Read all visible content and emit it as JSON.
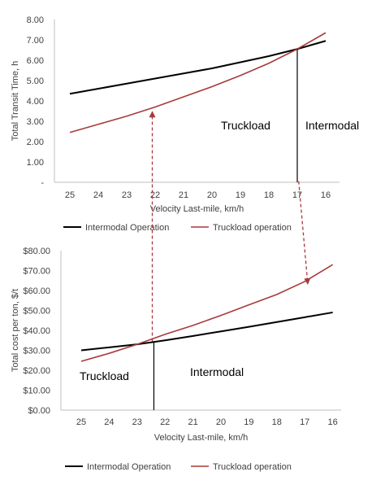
{
  "colors": {
    "intermodal": "#000000",
    "truckload": "#a83a3a",
    "axis": "#bfbfbf",
    "text": "#404040"
  },
  "chart_data": [
    {
      "type": "line",
      "title": "",
      "xlabel": "Velocity Last-mile, km/h",
      "ylabel": "Total Transit Time, h",
      "categories": [
        "25",
        "24",
        "23",
        "22",
        "21",
        "20",
        "19",
        "18",
        "17",
        "16"
      ],
      "y_tick_labels": [
        "-",
        "1.00",
        "2.00",
        "3.00",
        "4.00",
        "5.00",
        "6.00",
        "7.00",
        "8.00"
      ],
      "ylim": [
        0,
        8
      ],
      "grid": false,
      "legend_position": "bottom",
      "series": [
        {
          "name": "Intermodal Operation",
          "color": "#000000",
          "values": [
            4.35,
            4.6,
            4.85,
            5.1,
            5.35,
            5.6,
            5.9,
            6.2,
            6.55,
            6.95
          ]
        },
        {
          "name": "Truckload operation",
          "color": "#a83a3a",
          "values": [
            2.45,
            2.85,
            3.25,
            3.7,
            4.2,
            4.7,
            5.25,
            5.85,
            6.55,
            7.35
          ]
        }
      ],
      "annotations": {
        "truckload_label": "Truckload",
        "intermodal_label": "Intermodal",
        "crossover_x": 17,
        "arrow_up_x": 22.1
      }
    },
    {
      "type": "line",
      "title": "",
      "xlabel": "Velocity Last-mile, km/h",
      "ylabel": "Total cost per ton, $/t",
      "categories": [
        "25",
        "24",
        "23",
        "22",
        "21",
        "20",
        "19",
        "18",
        "17",
        "16"
      ],
      "y_tick_labels": [
        "$0.00",
        "$10.00",
        "$20.00",
        "$30.00",
        "$40.00",
        "$50.00",
        "$60.00",
        "$70.00",
        "$80.00"
      ],
      "ylim": [
        0,
        80
      ],
      "grid": false,
      "legend_position": "bottom",
      "series": [
        {
          "name": "Intermodal Operation",
          "color": "#000000",
          "values": [
            30.0,
            31.5,
            33.0,
            35.0,
            37.2,
            39.5,
            41.8,
            44.2,
            46.6,
            49.0
          ]
        },
        {
          "name": "Truckload operation",
          "color": "#a83a3a",
          "values": [
            24.5,
            28.5,
            33.0,
            38.0,
            42.5,
            47.5,
            52.8,
            58.0,
            64.5,
            73.0
          ]
        }
      ],
      "annotations": {
        "truckload_label": "Truckload",
        "intermodal_label": "Intermodal",
        "crossover_x": 22.4,
        "arrow_down_x": 16.9
      }
    }
  ]
}
